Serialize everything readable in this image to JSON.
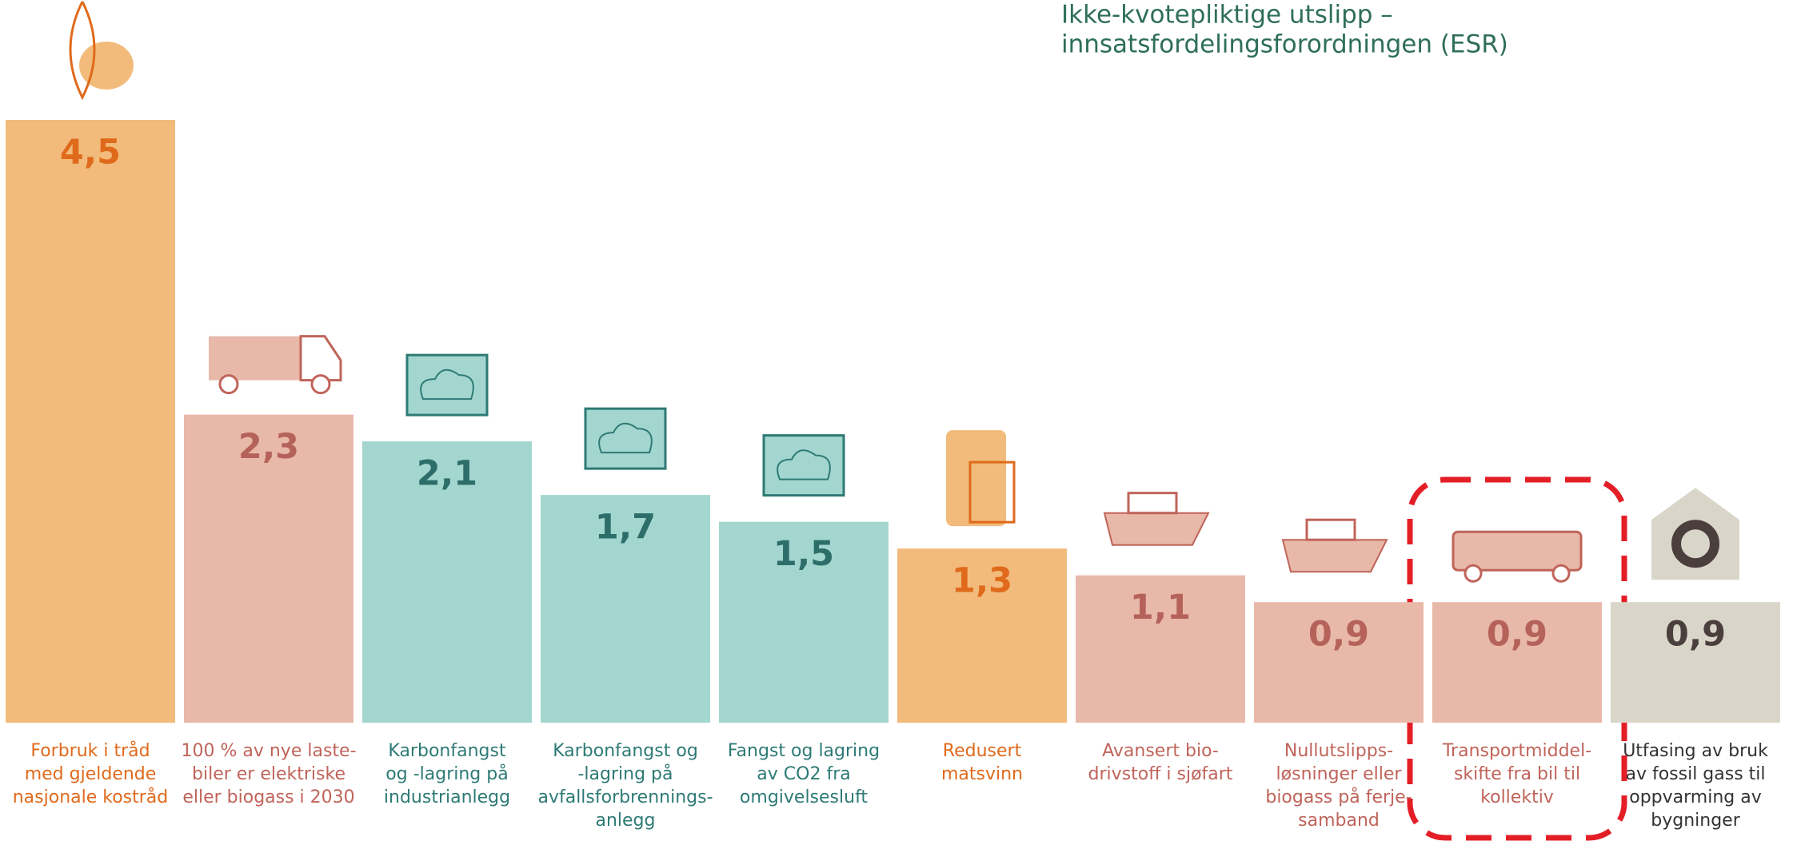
{
  "chart_data": {
    "type": "bar",
    "title": [
      "Ikke-kvotepliktige utslipp –",
      "innsatsfordelingsforordningen (ESR)"
    ],
    "categories": [
      [
        "Forbruk i tråd",
        "med gjeldende",
        "nasjonale kostråd"
      ],
      [
        "100 % av nye laste-",
        "biler er elektriske",
        "eller biogass i 2030"
      ],
      [
        "Karbonfangst",
        "og -lagring på",
        "industrianlegg"
      ],
      [
        "Karbonfangst og",
        "-lagring på",
        "avfallsforbrennings-",
        "anlegg"
      ],
      [
        "Fangst og lagring",
        "av CO2 fra",
        "omgivelsesluft"
      ],
      [
        "Redusert",
        "matsvinn"
      ],
      [
        "Avansert bio-",
        "drivstoff i sjøfart"
      ],
      [
        "Nullutslipps-",
        "løsninger eller",
        "biogass på ferje-",
        "samband"
      ],
      [
        "Transportmiddel-",
        "skifte fra bil til",
        "kollektiv"
      ],
      [
        "Utfasing av bruk",
        "av fossil gass til",
        "oppvarming av",
        "bygninger"
      ]
    ],
    "values": [
      4.5,
      2.3,
      2.1,
      1.7,
      1.5,
      1.3,
      1.1,
      0.9,
      0.9,
      0.9
    ],
    "value_labels": [
      "4,5",
      "2,3",
      "2,1",
      "1,7",
      "1,5",
      "1,3",
      "1,1",
      "0,9",
      "0,9",
      "0,9"
    ],
    "colors": [
      "#f2bb7b",
      "#e8b8a8",
      "#a3d6cf",
      "#a3d6cf",
      "#a3d6cf",
      "#f2bb7b",
      "#e8b8a8",
      "#e8b8a8",
      "#e8b8a8",
      "#d9d6c9"
    ],
    "label_colors": [
      "#e06a1c",
      "#c0645a",
      "#2e7a75",
      "#2e7a75",
      "#2e7a75",
      "#e06a1c",
      "#c0645a",
      "#c0645a",
      "#c0645a",
      "#333333"
    ],
    "value_label_colors": [
      "#e06a1c",
      "#b5625a",
      "#2e6e6a",
      "#2e6e6a",
      "#2e6e6a",
      "#e06a1c",
      "#b5625a",
      "#b5625a",
      "#b5625a",
      "#4a3f3c"
    ]
  }
}
